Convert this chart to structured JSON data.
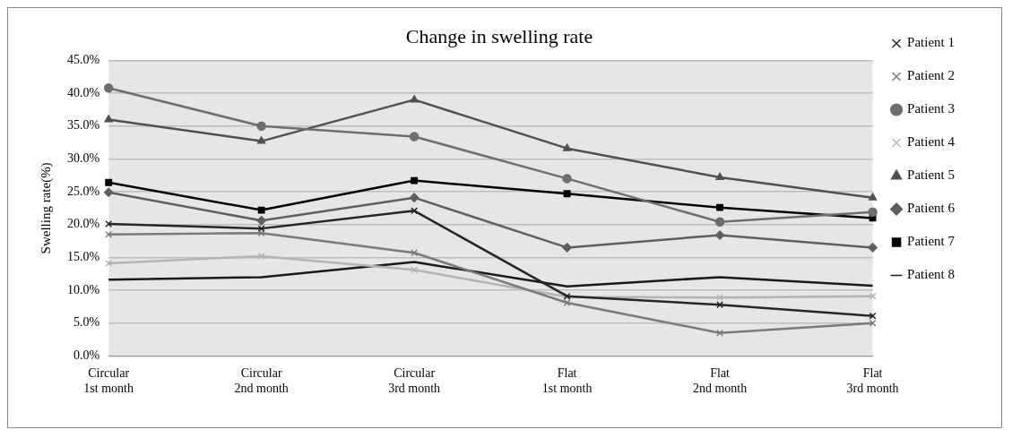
{
  "chart_data": {
    "type": "line",
    "title": "Change in swelling rate",
    "ylabel": "Swelling rate(%)",
    "categories": [
      "Circular\n1st month",
      "Circular\n2nd month",
      "Circular\n3rd month",
      "Flat\n1st month",
      "Flat\n2nd month",
      "Flat\n3rd month"
    ],
    "series": [
      {
        "name": "Patient 1",
        "color": "#262626",
        "marker": "cross",
        "values": [
          20.1,
          19.4,
          22.1,
          9.1,
          7.8,
          6.1
        ]
      },
      {
        "name": "Patient 2",
        "color": "#7a7a7a",
        "marker": "cross",
        "values": [
          18.5,
          18.7,
          15.7,
          8.1,
          3.5,
          5.0
        ]
      },
      {
        "name": "Patient 3",
        "color": "#6e6e6e",
        "marker": "circle",
        "values": [
          40.8,
          35.0,
          33.4,
          27.0,
          20.4,
          21.9
        ]
      },
      {
        "name": "Patient 4",
        "color": "#b4b4b4",
        "marker": "cross",
        "values": [
          14.1,
          15.2,
          13.1,
          9.0,
          8.9,
          9.1
        ]
      },
      {
        "name": "Patient 5",
        "color": "#505050",
        "marker": "triangle",
        "values": [
          36.0,
          32.7,
          39.0,
          31.6,
          27.2,
          24.1
        ]
      },
      {
        "name": "Patient 6",
        "color": "#5f5f5f",
        "marker": "diamond",
        "values": [
          24.9,
          20.6,
          24.1,
          16.5,
          18.4,
          16.5
        ]
      },
      {
        "name": "Patient 7",
        "color": "#000000",
        "marker": "square",
        "values": [
          26.4,
          22.2,
          26.7,
          24.7,
          22.6,
          21.0
        ]
      },
      {
        "name": "Patient 8",
        "color": "#1a1a1a",
        "marker": "none",
        "values": [
          11.6,
          12.0,
          14.3,
          10.6,
          12.0,
          10.7
        ]
      }
    ],
    "ylim": [
      0,
      45
    ],
    "yticks": [
      {
        "value": 0,
        "label": "0.0%"
      },
      {
        "value": 5,
        "label": "5.0%"
      },
      {
        "value": 10,
        "label": "10.0%"
      },
      {
        "value": 15,
        "label": "15.0%"
      },
      {
        "value": 20,
        "label": "20.0%"
      },
      {
        "value": 25,
        "label": "25.0%"
      },
      {
        "value": 30,
        "label": "30.0%"
      },
      {
        "value": 35,
        "label": "35.0%"
      },
      {
        "value": 40,
        "label": "40.0%"
      },
      {
        "value": 45,
        "label": "45.0%"
      }
    ],
    "grid": "y",
    "legend": "right",
    "line_style": "solid"
  }
}
